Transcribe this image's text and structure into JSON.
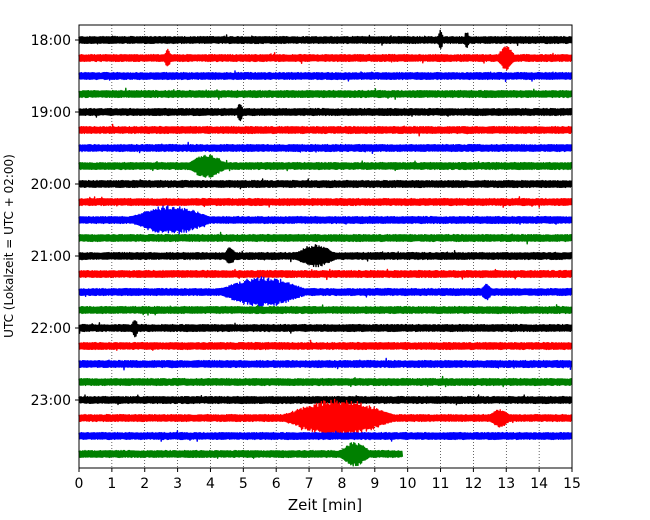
{
  "chart_data": {
    "type": "line",
    "title": "",
    "xlabel": "Zeit  [min]",
    "ylabel": "UTC (Lokalzeit = UTC + 02:00)",
    "xlim": [
      0,
      15
    ],
    "x_ticks": [
      "0",
      "1",
      "2",
      "3",
      "4",
      "5",
      "6",
      "7",
      "8",
      "9",
      "10",
      "11",
      "12",
      "13",
      "14",
      "15"
    ],
    "y_tick_labels": [
      "18:00",
      "19:00",
      "20:00",
      "21:00",
      "22:00",
      "23:00"
    ],
    "grid": "vertical dotted lines at each minute",
    "trace_colors_cycle": [
      "#000000",
      "#ff0000",
      "#0000ff",
      "#008000"
    ],
    "traces": [
      {
        "time": "18:00",
        "color": "#000000",
        "end_min": 15,
        "events": [
          {
            "t": 11.0,
            "amp": 1.8,
            "dur": 0.15
          },
          {
            "t": 11.8,
            "amp": 1.4,
            "dur": 0.15
          }
        ]
      },
      {
        "time": "18:15",
        "color": "#ff0000",
        "end_min": 15,
        "events": [
          {
            "t": 2.7,
            "amp": 1.5,
            "dur": 0.2
          },
          {
            "t": 13.0,
            "amp": 2.2,
            "dur": 0.5
          }
        ]
      },
      {
        "time": "18:30",
        "color": "#0000ff",
        "end_min": 15,
        "events": []
      },
      {
        "time": "18:45",
        "color": "#008000",
        "end_min": 15,
        "events": []
      },
      {
        "time": "19:00",
        "color": "#000000",
        "end_min": 15,
        "events": [
          {
            "t": 4.9,
            "amp": 1.4,
            "dur": 0.2
          }
        ]
      },
      {
        "time": "19:15",
        "color": "#ff0000",
        "end_min": 15,
        "events": []
      },
      {
        "time": "19:30",
        "color": "#0000ff",
        "end_min": 15,
        "events": []
      },
      {
        "time": "19:45",
        "color": "#008000",
        "end_min": 15,
        "events": [
          {
            "t": 3.9,
            "amp": 2.3,
            "dur": 1.1
          }
        ]
      },
      {
        "time": "20:00",
        "color": "#000000",
        "end_min": 15,
        "events": []
      },
      {
        "time": "20:15",
        "color": "#ff0000",
        "end_min": 15,
        "events": []
      },
      {
        "time": "20:30",
        "color": "#0000ff",
        "end_min": 15,
        "events": [
          {
            "t": 2.8,
            "amp": 2.9,
            "dur": 2.4
          }
        ]
      },
      {
        "time": "20:45",
        "color": "#008000",
        "end_min": 15,
        "events": []
      },
      {
        "time": "21:00",
        "color": "#000000",
        "end_min": 15,
        "events": [
          {
            "t": 4.6,
            "amp": 1.5,
            "dur": 0.3
          },
          {
            "t": 7.2,
            "amp": 2.0,
            "dur": 1.2
          }
        ]
      },
      {
        "time": "21:15",
        "color": "#ff0000",
        "end_min": 15,
        "events": []
      },
      {
        "time": "21:30",
        "color": "#0000ff",
        "end_min": 15,
        "events": [
          {
            "t": 5.6,
            "amp": 3.0,
            "dur": 2.6
          },
          {
            "t": 12.4,
            "amp": 1.3,
            "dur": 0.3
          }
        ]
      },
      {
        "time": "21:45",
        "color": "#008000",
        "end_min": 15,
        "events": []
      },
      {
        "time": "22:00",
        "color": "#000000",
        "end_min": 15,
        "events": [
          {
            "t": 1.7,
            "amp": 1.5,
            "dur": 0.2
          }
        ]
      },
      {
        "time": "22:15",
        "color": "#ff0000",
        "end_min": 15,
        "events": []
      },
      {
        "time": "22:30",
        "color": "#0000ff",
        "end_min": 15,
        "events": []
      },
      {
        "time": "22:45",
        "color": "#008000",
        "end_min": 15,
        "events": []
      },
      {
        "time": "23:00",
        "color": "#000000",
        "end_min": 15,
        "events": []
      },
      {
        "time": "23:15",
        "color": "#ff0000",
        "end_min": 15,
        "events": [
          {
            "t": 7.9,
            "amp": 4.0,
            "dur": 3.4
          },
          {
            "t": 12.8,
            "amp": 1.5,
            "dur": 0.6
          }
        ]
      },
      {
        "time": "23:30",
        "color": "#0000ff",
        "end_min": 15,
        "events": []
      },
      {
        "time": "23:45",
        "color": "#008000",
        "end_min": 9.85,
        "events": [
          {
            "t": 8.4,
            "amp": 2.3,
            "dur": 0.9
          }
        ]
      }
    ]
  }
}
